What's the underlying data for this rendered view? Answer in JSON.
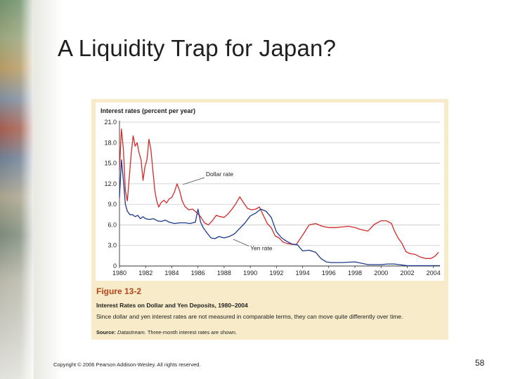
{
  "slide": {
    "title": "A Liquidity Trap for Japan?",
    "copyright": "Copyright © 2006 Pearson Addison-Wesley. All rights reserved.",
    "page_number": "58"
  },
  "figure": {
    "number": "Figure 13-2",
    "title": "Interest Rates on Dollar and Yen Deposits, 1980–2004",
    "description": "Since dollar and yen interest rates are not measured in comparable terms, they can move quite differently over time.",
    "source_label": "Source:",
    "source_name": "Datastream.",
    "source_note": "Three-month interest rates are shown."
  },
  "colors": {
    "dollar": "#d42a2a",
    "yen": "#1c3a8c",
    "panel": "#f8ebc9",
    "figure_number": "#b5441a"
  },
  "chart_data": {
    "type": "line",
    "ylabel": "Interest rates (percent per year)",
    "xlim": [
      1980,
      2004.5
    ],
    "ylim": [
      0,
      21
    ],
    "yticks": [
      0,
      3.0,
      6.0,
      9.0,
      12.0,
      15.0,
      18.0,
      21.0
    ],
    "ytick_labels": [
      "0",
      "3.0",
      "6.0",
      "9.0",
      "12.0",
      "15.0",
      "18.0",
      "21.0"
    ],
    "xticks": [
      1980,
      1982,
      1984,
      1986,
      1988,
      1990,
      1992,
      1994,
      1996,
      1998,
      2000,
      2002,
      2004
    ],
    "xtick_labels": [
      "1980",
      "1982",
      "1984",
      "1986",
      "1988",
      "1990",
      "1992",
      "1994",
      "1996",
      "1998",
      "2000",
      "2002",
      "2004"
    ],
    "grid": "horizontal",
    "series": [
      {
        "name": "Dollar rate",
        "color": "#d42a2a",
        "label_anchor": [
          1986.6,
          13.1
        ],
        "x": [
          1980.0,
          1980.15,
          1980.3,
          1980.45,
          1980.6,
          1980.75,
          1980.9,
          1981.05,
          1981.2,
          1981.35,
          1981.5,
          1981.65,
          1981.8,
          1981.95,
          1982.1,
          1982.25,
          1982.4,
          1982.55,
          1982.7,
          1982.85,
          1983.0,
          1983.2,
          1983.4,
          1983.6,
          1983.8,
          1984.0,
          1984.2,
          1984.4,
          1984.6,
          1984.8,
          1985.0,
          1985.3,
          1985.6,
          1985.9,
          1986.2,
          1986.5,
          1986.8,
          1987.1,
          1987.4,
          1987.7,
          1988.0,
          1988.3,
          1988.6,
          1988.9,
          1989.2,
          1989.5,
          1989.8,
          1990.1,
          1990.4,
          1990.7,
          1991.0,
          1991.3,
          1991.6,
          1991.9,
          1992.2,
          1992.5,
          1992.8,
          1993.1,
          1993.5,
          1994.0,
          1994.5,
          1995.0,
          1995.5,
          1996.0,
          1996.5,
          1997.0,
          1997.5,
          1998.0,
          1998.5,
          1999.0,
          1999.5,
          2000.0,
          2000.4,
          2000.8,
          2001.0,
          2001.3,
          2001.6,
          2001.9,
          2002.2,
          2002.6,
          2003.0,
          2003.4,
          2003.8,
          2004.1,
          2004.4
        ],
        "y": [
          14.0,
          20.0,
          17.0,
          11.0,
          9.5,
          13.0,
          16.5,
          19.0,
          17.5,
          18.0,
          16.5,
          15.5,
          12.5,
          14.5,
          15.5,
          18.5,
          17.0,
          14.0,
          11.0,
          9.5,
          8.6,
          9.3,
          9.6,
          9.2,
          9.8,
          10.0,
          10.8,
          12.0,
          11.0,
          9.5,
          8.7,
          8.2,
          8.3,
          7.8,
          7.2,
          6.3,
          6.0,
          6.6,
          7.4,
          7.2,
          7.1,
          7.6,
          8.3,
          9.1,
          10.1,
          9.2,
          8.4,
          8.2,
          8.3,
          8.6,
          7.4,
          6.2,
          5.6,
          4.4,
          4.1,
          3.5,
          3.3,
          3.2,
          3.1,
          4.5,
          6.0,
          6.2,
          5.8,
          5.6,
          5.6,
          5.7,
          5.8,
          5.6,
          5.3,
          5.1,
          6.1,
          6.6,
          6.6,
          6.2,
          5.2,
          4.1,
          3.3,
          2.1,
          1.8,
          1.7,
          1.3,
          1.1,
          1.1,
          1.4,
          2.0
        ]
      },
      {
        "name": "Yen rate",
        "color": "#1c3a8c",
        "label_anchor": [
          1990.0,
          2.3
        ],
        "x": [
          1980.0,
          1980.15,
          1980.3,
          1980.45,
          1980.6,
          1980.8,
          1981.0,
          1981.2,
          1981.4,
          1981.6,
          1981.8,
          1982.0,
          1982.3,
          1982.6,
          1982.9,
          1983.2,
          1983.5,
          1983.8,
          1984.2,
          1984.6,
          1985.0,
          1985.4,
          1985.8,
          1986.0,
          1986.2,
          1986.4,
          1986.7,
          1987.0,
          1987.3,
          1987.6,
          1988.0,
          1988.4,
          1988.8,
          1989.2,
          1989.6,
          1990.0,
          1990.4,
          1990.8,
          1991.2,
          1991.6,
          1992.0,
          1992.4,
          1992.8,
          1993.2,
          1993.6,
          1994.0,
          1994.5,
          1995.0,
          1995.4,
          1995.8,
          1996.2,
          1997.0,
          1998.0,
          1999.0,
          2000.0,
          2000.5,
          2001.0,
          2002.0,
          2003.0,
          2004.0,
          2004.5
        ],
        "y": [
          10.0,
          15.5,
          12.5,
          9.0,
          8.0,
          7.5,
          7.5,
          7.2,
          7.4,
          6.9,
          7.2,
          6.9,
          6.8,
          6.9,
          6.6,
          6.5,
          6.7,
          6.4,
          6.2,
          6.3,
          6.3,
          6.2,
          6.4,
          8.3,
          6.4,
          5.6,
          4.8,
          4.1,
          4.0,
          4.3,
          4.1,
          4.3,
          4.7,
          5.5,
          6.3,
          7.3,
          7.7,
          8.3,
          8.0,
          7.1,
          5.0,
          4.1,
          3.6,
          3.2,
          3.1,
          2.2,
          2.3,
          2.0,
          1.1,
          0.6,
          0.5,
          0.5,
          0.6,
          0.2,
          0.2,
          0.3,
          0.3,
          0.05,
          0.05,
          0.05,
          0.05
        ]
      }
    ]
  }
}
